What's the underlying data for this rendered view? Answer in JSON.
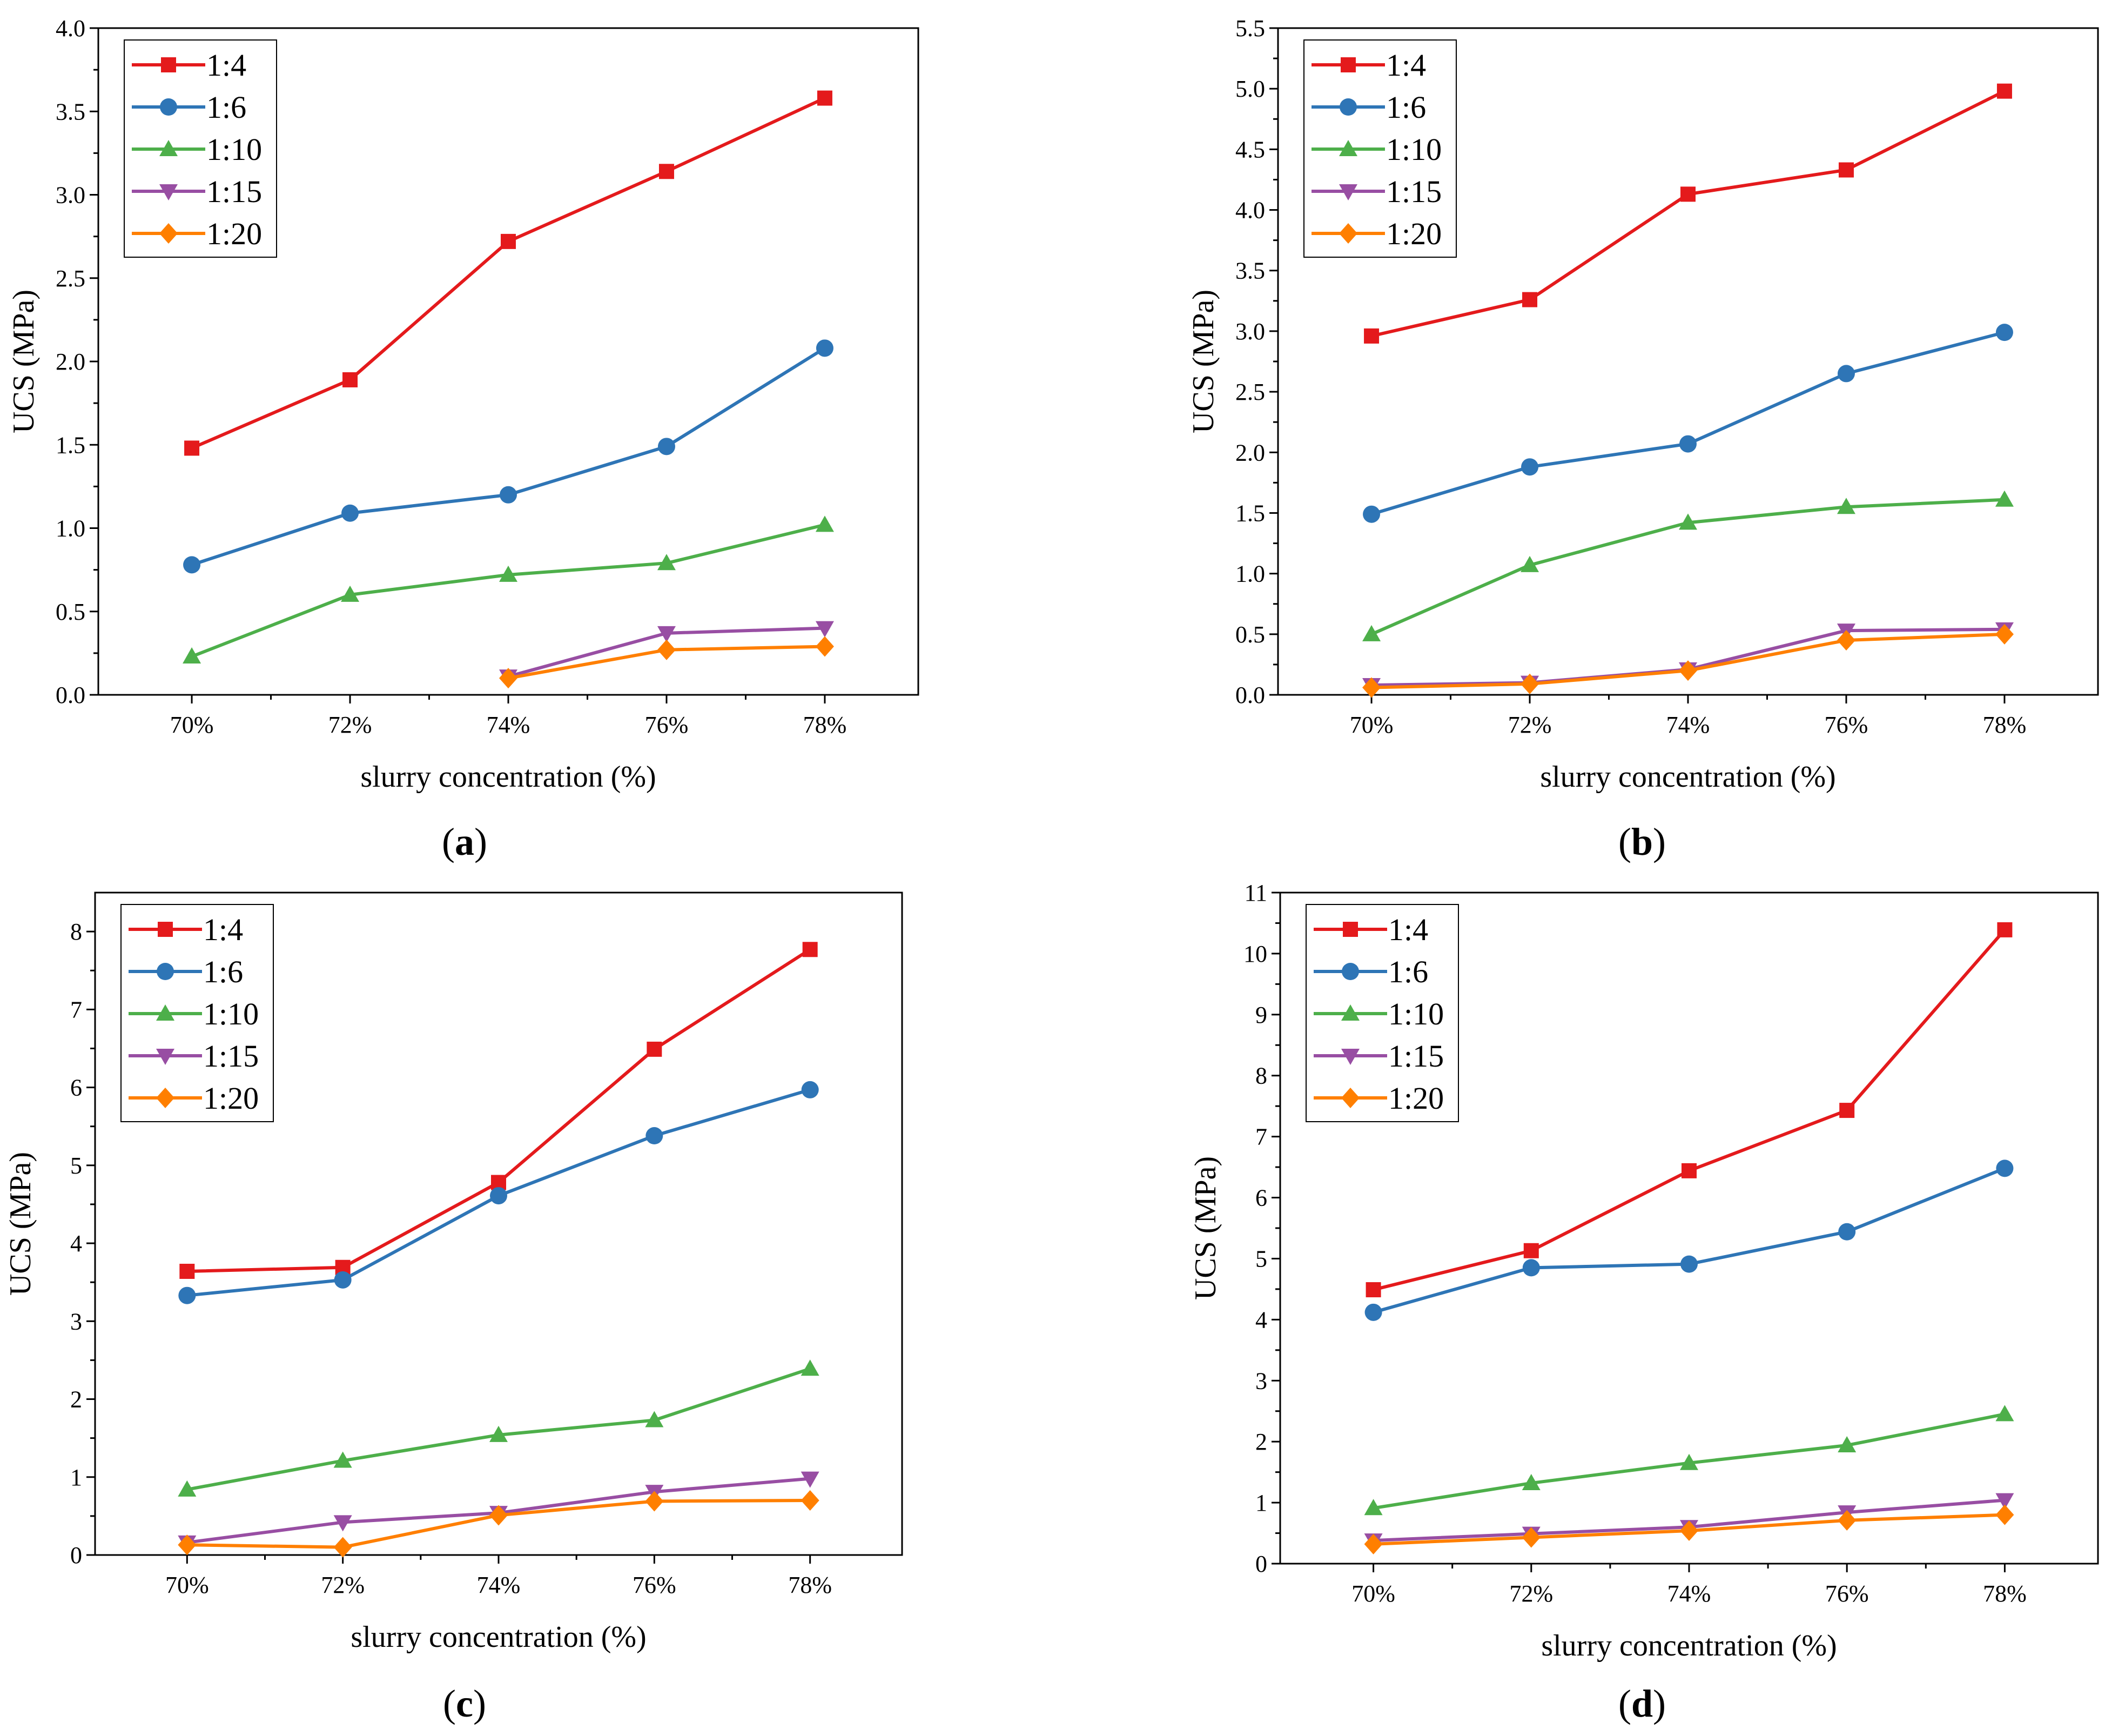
{
  "figure": {
    "id": "ucs-vs-slurry-concentration"
  },
  "series_colors": {
    "1:4": "#e41a1c",
    "1:6": "#2e75b6",
    "1:10": "#4daf4a",
    "1:15": "#984ea3",
    "1:20": "#ff7f00"
  },
  "chart_data": [
    {
      "panel": "a",
      "caption_letter": "a",
      "type": "line",
      "xlabel": "slurry concentration (%)",
      "ylabel": "UCS (MPa)",
      "categories": [
        "70%",
        "72%",
        "74%",
        "76%",
        "78%"
      ],
      "ylim": [
        0,
        4.0
      ],
      "yticks": [
        "0.0",
        "0.5",
        "1.0",
        "1.5",
        "2.0",
        "2.5",
        "3.0",
        "3.5",
        "4.0"
      ],
      "legend_position": "top-left",
      "series": [
        {
          "name": "1:4",
          "marker": "square",
          "values": [
            1.48,
            1.89,
            2.72,
            3.14,
            3.58
          ]
        },
        {
          "name": "1:6",
          "marker": "circle",
          "values": [
            0.78,
            1.09,
            1.2,
            1.49,
            2.08
          ]
        },
        {
          "name": "1:10",
          "marker": "triangle",
          "values": [
            0.23,
            0.6,
            0.72,
            0.79,
            1.02
          ]
        },
        {
          "name": "1:15",
          "marker": "triangle-down",
          "values": [
            null,
            null,
            0.11,
            0.37,
            0.4
          ]
        },
        {
          "name": "1:20",
          "marker": "diamond",
          "values": [
            null,
            null,
            0.1,
            0.27,
            0.29
          ]
        }
      ]
    },
    {
      "panel": "b",
      "caption_letter": "b",
      "type": "line",
      "xlabel": "slurry concentration (%)",
      "ylabel": "UCS (MPa)",
      "categories": [
        "70%",
        "72%",
        "74%",
        "76%",
        "78%"
      ],
      "ylim": [
        0,
        5.5
      ],
      "yticks": [
        "0.0",
        "0.5",
        "1.0",
        "1.5",
        "2.0",
        "2.5",
        "3.0",
        "3.5",
        "4.0",
        "4.5",
        "5.0",
        "5.5"
      ],
      "legend_position": "top-left",
      "series": [
        {
          "name": "1:4",
          "marker": "square",
          "values": [
            2.96,
            3.26,
            4.13,
            4.33,
            4.98
          ]
        },
        {
          "name": "1:6",
          "marker": "circle",
          "values": [
            1.49,
            1.88,
            2.07,
            2.65,
            2.99
          ]
        },
        {
          "name": "1:10",
          "marker": "triangle",
          "values": [
            0.5,
            1.07,
            1.42,
            1.55,
            1.61
          ]
        },
        {
          "name": "1:15",
          "marker": "triangle-down",
          "values": [
            0.08,
            0.1,
            0.21,
            0.53,
            0.54
          ]
        },
        {
          "name": "1:20",
          "marker": "diamond",
          "values": [
            0.06,
            0.09,
            0.2,
            0.45,
            0.5
          ]
        }
      ]
    },
    {
      "panel": "c",
      "caption_letter": "c",
      "type": "line",
      "xlabel": "slurry concentration (%)",
      "ylabel": "UCS (MPa)",
      "categories": [
        "70%",
        "72%",
        "74%",
        "76%",
        "78%"
      ],
      "ylim": [
        0,
        8.5
      ],
      "yticks": [
        "0",
        "1",
        "2",
        "3",
        "4",
        "5",
        "6",
        "7",
        "8"
      ],
      "legend_position": "top-left",
      "series": [
        {
          "name": "1:4",
          "marker": "square",
          "values": [
            3.64,
            3.69,
            4.78,
            6.49,
            7.77
          ]
        },
        {
          "name": "1:6",
          "marker": "circle",
          "values": [
            3.33,
            3.53,
            4.61,
            5.38,
            5.97
          ]
        },
        {
          "name": "1:10",
          "marker": "triangle",
          "values": [
            0.84,
            1.21,
            1.54,
            1.73,
            2.39
          ]
        },
        {
          "name": "1:15",
          "marker": "triangle-down",
          "values": [
            0.16,
            0.42,
            0.54,
            0.81,
            0.98
          ]
        },
        {
          "name": "1:20",
          "marker": "diamond",
          "values": [
            0.13,
            0.1,
            0.51,
            0.69,
            0.7
          ]
        }
      ]
    },
    {
      "panel": "d",
      "caption_letter": "d",
      "type": "line",
      "xlabel": "slurry concentration (%)",
      "ylabel": "UCS (MPa)",
      "categories": [
        "70%",
        "72%",
        "74%",
        "76%",
        "78%"
      ],
      "ylim": [
        0,
        11
      ],
      "yticks": [
        "0",
        "1",
        "2",
        "3",
        "4",
        "5",
        "6",
        "7",
        "8",
        "9",
        "10",
        "11"
      ],
      "legend_position": "top-left",
      "series": [
        {
          "name": "1:4",
          "marker": "square",
          "values": [
            4.49,
            5.13,
            6.44,
            7.43,
            10.39
          ]
        },
        {
          "name": "1:6",
          "marker": "circle",
          "values": [
            4.12,
            4.85,
            4.91,
            5.44,
            6.48
          ]
        },
        {
          "name": "1:10",
          "marker": "triangle",
          "values": [
            0.91,
            1.32,
            1.65,
            1.94,
            2.45
          ]
        },
        {
          "name": "1:15",
          "marker": "triangle-down",
          "values": [
            0.38,
            0.49,
            0.6,
            0.84,
            1.04
          ]
        },
        {
          "name": "1:20",
          "marker": "diamond",
          "values": [
            0.32,
            0.43,
            0.54,
            0.71,
            0.8
          ]
        }
      ]
    }
  ]
}
